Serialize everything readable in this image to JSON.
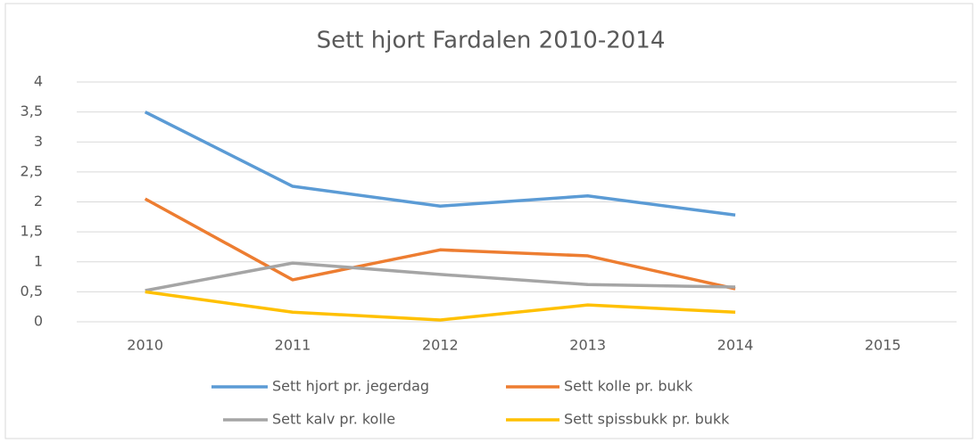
{
  "chart_data": {
    "type": "line",
    "title": "Sett hjort Fardalen 2010-2014",
    "categories": [
      "2010",
      "2011",
      "2012",
      "2013",
      "2014",
      "2015"
    ],
    "series": [
      {
        "name": "Sett hjort pr. jegerdag",
        "color": "#5b9bd5",
        "values": [
          3.5,
          2.26,
          1.93,
          2.1,
          1.78,
          null
        ]
      },
      {
        "name": "Sett kolle pr. bukk",
        "color": "#ed7d31",
        "values": [
          2.05,
          0.7,
          1.2,
          1.1,
          0.55,
          null
        ]
      },
      {
        "name": "Sett kalv pr. kolle",
        "color": "#a5a5a5",
        "values": [
          0.52,
          0.98,
          0.79,
          0.62,
          0.58,
          null
        ]
      },
      {
        "name": "Sett spissbukk pr. bukk",
        "color": "#ffc000",
        "values": [
          0.5,
          0.16,
          0.03,
          0.28,
          0.16,
          null
        ]
      }
    ],
    "ylim": [
      0,
      4
    ],
    "yticks": [
      0,
      {
        "value": 0.5,
        "label": "0,5"
      },
      1,
      {
        "value": 1.5,
        "label": "1,5"
      },
      2,
      {
        "value": 2.5,
        "label": "2,5"
      },
      3,
      {
        "value": 3.5,
        "label": "3,5"
      },
      4
    ],
    "grid": true,
    "legend": "bottom"
  }
}
